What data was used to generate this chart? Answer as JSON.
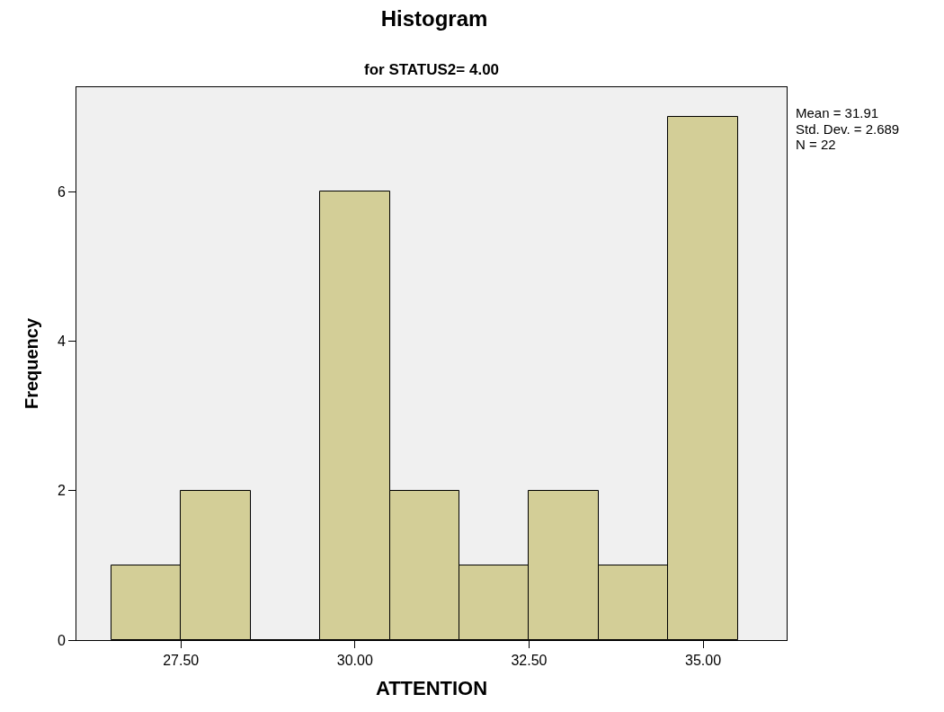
{
  "chart_data": {
    "type": "histogram",
    "title": "Histogram",
    "subtitle": "for STATUS2= 4.00",
    "xlabel": "ATTENTION",
    "ylabel": "Frequency",
    "bins": [
      26.5,
      27.5,
      28.5,
      29.5,
      30.5,
      31.5,
      32.5,
      33.5,
      34.5,
      35.5
    ],
    "values": [
      1,
      2,
      0,
      6,
      2,
      1,
      2,
      1,
      7
    ],
    "color": "#d3ce97",
    "xlim": [
      26.0,
      36.2
    ],
    "xticks": [
      {
        "value": 27.5,
        "label": "27.50"
      },
      {
        "value": 30,
        "label": "30.00"
      },
      {
        "value": 32.5,
        "label": "32.50"
      },
      {
        "value": 35,
        "label": "35.00"
      }
    ],
    "ylim": [
      0,
      7.4
    ],
    "yticks": [
      0,
      2,
      4,
      6
    ],
    "legend": false,
    "annotations": [
      "Mean = 31.91",
      "Std. Dev. = 2.689",
      "N = 22"
    ]
  }
}
